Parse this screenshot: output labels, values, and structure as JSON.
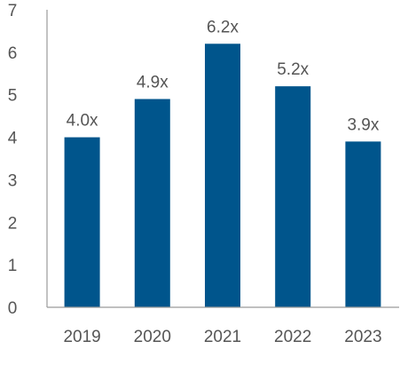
{
  "chart_data": {
    "type": "bar",
    "title": "",
    "xlabel": "",
    "ylabel": "",
    "categories": [
      "2019",
      "2020",
      "2021",
      "2022",
      "2023"
    ],
    "values": [
      4.0,
      4.9,
      6.2,
      5.2,
      3.9
    ],
    "data_labels": [
      "4.0x",
      "4.9x",
      "6.2x",
      "5.2x",
      "3.9x"
    ],
    "y_ticks": [
      "0",
      "1",
      "2",
      "3",
      "4",
      "5",
      "6",
      "7"
    ],
    "ylim": [
      0,
      7
    ],
    "grid": false,
    "colors": {
      "bar": "#00558c",
      "text": "#555555",
      "axis": "#9a9a9a"
    }
  }
}
